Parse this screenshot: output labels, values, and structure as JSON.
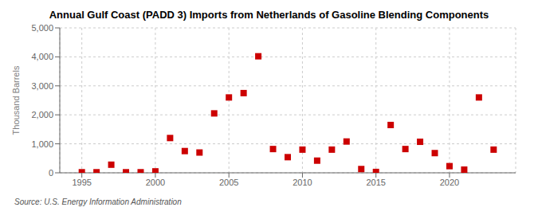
{
  "chart_data": {
    "type": "scatter",
    "title": "Annual Gulf Coast (PADD 3) Imports from Netherlands of Gasoline Blending Components",
    "ylabel": "Thousand Barrels",
    "source": "Source: U.S. Energy Information Administration",
    "x": [
      1995,
      1996,
      1997,
      1998,
      1999,
      2000,
      2001,
      2002,
      2003,
      2004,
      2005,
      2006,
      2007,
      2008,
      2009,
      2010,
      2011,
      2012,
      2013,
      2014,
      2015,
      2016,
      2017,
      2018,
      2019,
      2020,
      2021,
      2022,
      2023
    ],
    "values": [
      20,
      20,
      280,
      20,
      20,
      50,
      1200,
      750,
      700,
      2050,
      2600,
      2750,
      4020,
      820,
      540,
      800,
      420,
      800,
      1080,
      130,
      30,
      1650,
      820,
      1070,
      680,
      230,
      110,
      2600,
      800
    ],
    "color": "#cc0000",
    "marker": "square",
    "xlim": [
      1993.5,
      2024.5
    ],
    "xticks": [
      1995,
      2000,
      2005,
      2010,
      2015,
      2020
    ],
    "ylim": [
      0,
      5000
    ],
    "yticks": [
      0,
      {
        "value": 1000,
        "label": "1,000"
      },
      {
        "value": 2000,
        "label": "2,000"
      },
      {
        "value": 3000,
        "label": "3,000"
      },
      {
        "value": 4000,
        "label": "4,000"
      },
      {
        "value": 5000,
        "label": "5,000"
      }
    ],
    "grid": true
  }
}
